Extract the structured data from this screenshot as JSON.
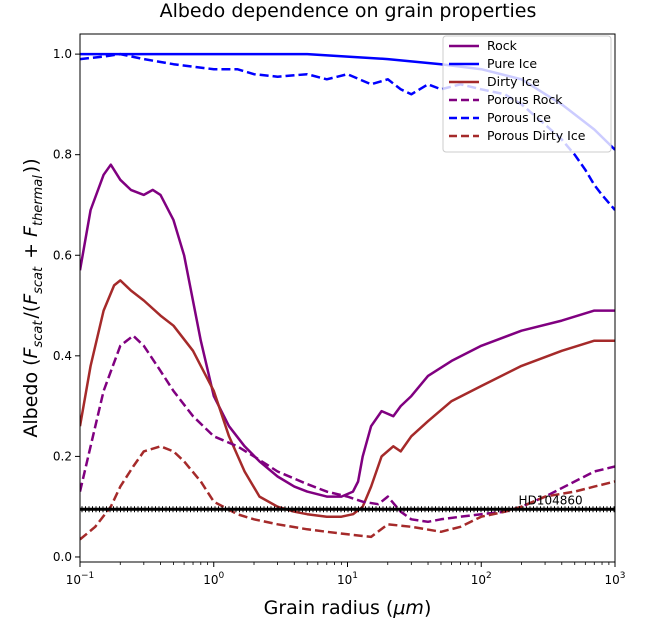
{
  "chart_data": {
    "type": "line",
    "title": "Albedo dependence on grain properties",
    "xlabel": "Grain radius (μm)",
    "ylabel": "Albedo (F_scat/(F_scat + F_thermal))",
    "xscale": "log",
    "xlim": [
      0.1,
      1000
    ],
    "ylim": [
      -0.01,
      1.04
    ],
    "xticks": [
      {
        "value": 0.1,
        "base": "10",
        "exp": "−1"
      },
      {
        "value": 1,
        "base": "10",
        "exp": "0"
      },
      {
        "value": 10,
        "base": "10",
        "exp": "1"
      },
      {
        "value": 100,
        "base": "10",
        "exp": "2"
      },
      {
        "value": 1000,
        "base": "10",
        "exp": "3"
      }
    ],
    "yticks": [
      "0.0",
      "0.2",
      "0.4",
      "0.6",
      "0.8",
      "1.0"
    ],
    "legend_position": "top-right",
    "series": [
      {
        "name": "Rock",
        "color": "#800080",
        "dash": "solid",
        "x": [
          0.1,
          0.12,
          0.15,
          0.17,
          0.2,
          0.24,
          0.3,
          0.35,
          0.4,
          0.5,
          0.6,
          0.8,
          1.0,
          1.3,
          1.7,
          2.2,
          3,
          4,
          5,
          7,
          9,
          11,
          12,
          13,
          15,
          18,
          22,
          25,
          30,
          40,
          60,
          100,
          200,
          400,
          700,
          1000
        ],
        "y": [
          0.57,
          0.69,
          0.76,
          0.78,
          0.75,
          0.73,
          0.72,
          0.73,
          0.72,
          0.67,
          0.6,
          0.43,
          0.32,
          0.26,
          0.22,
          0.19,
          0.16,
          0.14,
          0.13,
          0.12,
          0.12,
          0.13,
          0.15,
          0.2,
          0.26,
          0.29,
          0.28,
          0.3,
          0.32,
          0.36,
          0.39,
          0.42,
          0.45,
          0.47,
          0.49,
          0.49
        ]
      },
      {
        "name": "Pure Ice",
        "color": "#0000ff",
        "dash": "solid",
        "x": [
          0.1,
          0.2,
          0.5,
          1,
          2,
          5,
          10,
          20,
          50,
          100,
          200,
          400,
          700,
          1000
        ],
        "y": [
          1.0,
          1.0,
          1.0,
          1.0,
          1.0,
          1.0,
          0.995,
          0.99,
          0.98,
          0.97,
          0.95,
          0.9,
          0.85,
          0.81
        ]
      },
      {
        "name": "Dirty Ice",
        "color": "#a52a2a",
        "dash": "solid",
        "x": [
          0.1,
          0.12,
          0.15,
          0.18,
          0.2,
          0.24,
          0.3,
          0.4,
          0.5,
          0.7,
          1.0,
          1.3,
          1.7,
          2.2,
          3,
          4,
          5,
          7,
          9,
          11,
          13,
          15,
          18,
          22,
          25,
          30,
          40,
          60,
          100,
          200,
          400,
          700,
          1000
        ],
        "y": [
          0.26,
          0.38,
          0.49,
          0.54,
          0.55,
          0.53,
          0.51,
          0.48,
          0.46,
          0.41,
          0.33,
          0.24,
          0.17,
          0.12,
          0.1,
          0.09,
          0.085,
          0.08,
          0.08,
          0.085,
          0.1,
          0.14,
          0.2,
          0.22,
          0.21,
          0.24,
          0.27,
          0.31,
          0.34,
          0.38,
          0.41,
          0.43,
          0.43
        ]
      },
      {
        "name": "Porous Rock",
        "color": "#800080",
        "dash": "dashed",
        "x": [
          0.1,
          0.12,
          0.15,
          0.2,
          0.25,
          0.3,
          0.4,
          0.5,
          0.7,
          1.0,
          1.5,
          2,
          3,
          5,
          7,
          10,
          13,
          17,
          20,
          25,
          30,
          40,
          50,
          70,
          100,
          150,
          200,
          300,
          500,
          700,
          1000
        ],
        "y": [
          0.13,
          0.22,
          0.33,
          0.42,
          0.44,
          0.42,
          0.37,
          0.33,
          0.28,
          0.24,
          0.22,
          0.2,
          0.17,
          0.145,
          0.13,
          0.12,
          0.11,
          0.105,
          0.12,
          0.09,
          0.075,
          0.07,
          0.075,
          0.08,
          0.085,
          0.09,
          0.1,
          0.12,
          0.15,
          0.17,
          0.18
        ]
      },
      {
        "name": "Porous Ice",
        "color": "#0000ff",
        "dash": "dashed",
        "x": [
          0.1,
          0.15,
          0.2,
          0.3,
          0.5,
          0.7,
          1.0,
          1.5,
          2,
          3,
          5,
          7,
          10,
          15,
          20,
          25,
          30,
          40,
          50,
          70,
          100,
          150,
          200,
          300,
          400,
          500,
          600,
          700,
          800,
          1000
        ],
        "y": [
          0.99,
          0.995,
          1.0,
          0.99,
          0.98,
          0.975,
          0.97,
          0.97,
          0.96,
          0.955,
          0.96,
          0.95,
          0.96,
          0.94,
          0.95,
          0.93,
          0.92,
          0.94,
          0.93,
          0.94,
          0.93,
          0.92,
          0.9,
          0.86,
          0.83,
          0.8,
          0.77,
          0.74,
          0.72,
          0.69
        ]
      },
      {
        "name": "Porous Dirty Ice",
        "color": "#a52a2a",
        "dash": "dashed",
        "x": [
          0.1,
          0.13,
          0.17,
          0.2,
          0.25,
          0.3,
          0.4,
          0.5,
          0.6,
          0.8,
          1.0,
          1.5,
          2,
          3,
          5,
          7,
          10,
          15,
          20,
          30,
          50,
          70,
          100,
          150,
          200,
          300,
          500,
          700,
          1000
        ],
        "y": [
          0.035,
          0.06,
          0.1,
          0.14,
          0.18,
          0.21,
          0.22,
          0.21,
          0.19,
          0.15,
          0.11,
          0.085,
          0.075,
          0.065,
          0.055,
          0.05,
          0.045,
          0.04,
          0.065,
          0.06,
          0.05,
          0.06,
          0.08,
          0.09,
          0.1,
          0.12,
          0.13,
          0.14,
          0.15
        ]
      },
      {
        "name": "",
        "color": "#000000",
        "dash": "solid",
        "is_reference": true,
        "x": [
          0.1,
          1000
        ],
        "y": [
          0.095,
          0.095
        ]
      }
    ],
    "annotations": [
      {
        "text": "HD104860",
        "x": 330,
        "y": 0.1
      }
    ]
  }
}
